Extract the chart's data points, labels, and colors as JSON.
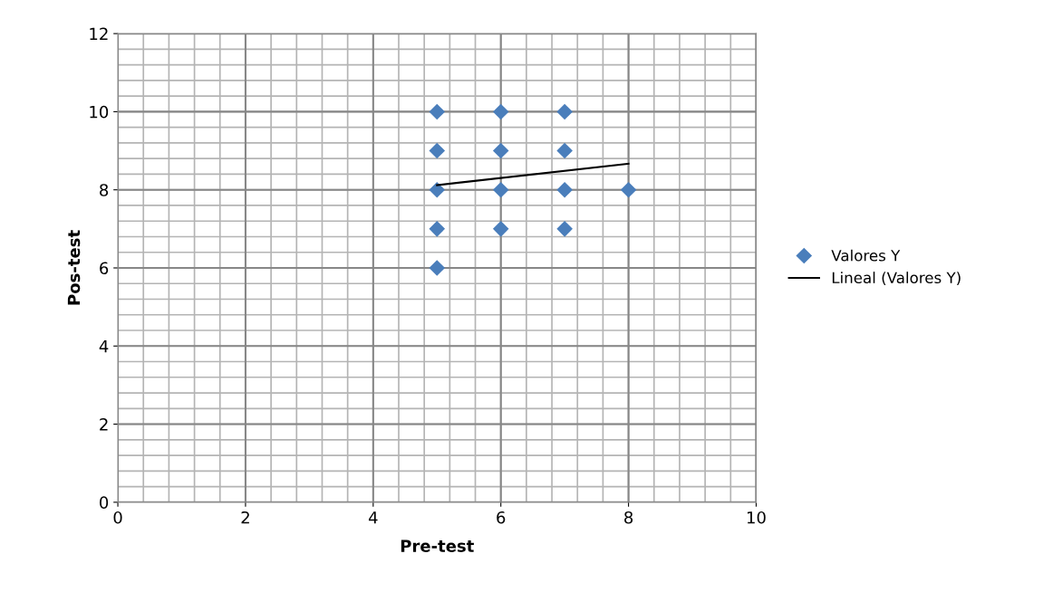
{
  "chart_data": {
    "type": "scatter",
    "xlabel": "Pre-test",
    "ylabel": "Pos-test",
    "xlim": [
      0,
      10
    ],
    "xticks": [
      0,
      2,
      4,
      6,
      8,
      10
    ],
    "ylim": [
      0,
      12
    ],
    "yticks": [
      0,
      2,
      4,
      6,
      8,
      10,
      12
    ],
    "grid": true,
    "legend": "right",
    "series": [
      {
        "name": "Valores Y",
        "marker": "diamond",
        "color": "#4a7ebb",
        "x": [
          5,
          5,
          5,
          5,
          5,
          6,
          6,
          6,
          6,
          7,
          7,
          7,
          7,
          8
        ],
        "values": [
          10,
          9,
          8,
          7,
          6,
          10,
          9,
          8,
          7,
          10,
          9,
          8,
          7,
          8
        ]
      },
      {
        "name": "Lineal (Valores Y)",
        "type": "line",
        "color": "#000000",
        "x": [
          5,
          8
        ],
        "values": [
          8.12,
          8.67
        ]
      }
    ]
  }
}
